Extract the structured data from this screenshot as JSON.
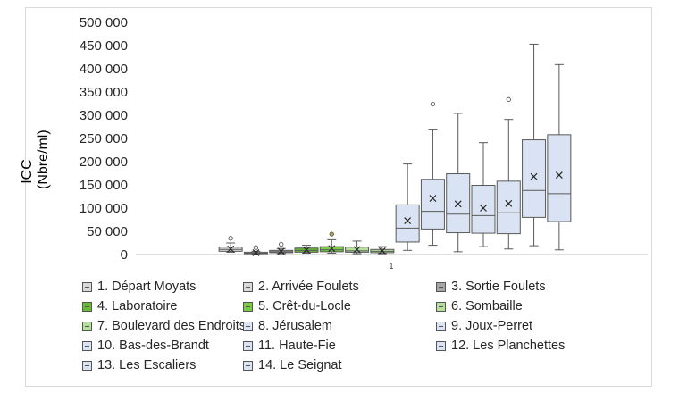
{
  "chart_data": {
    "type": "boxplot",
    "ylabel_line1": "ICC",
    "ylabel_line2": "(Nbre/ml)",
    "x_tick": "1",
    "yticks": [
      "0",
      "50 000",
      "100 000",
      "150 000",
      "200 000",
      "250 000",
      "300 000",
      "350 000",
      "400 000",
      "450 000",
      "500 000"
    ],
    "ylim": [
      0,
      500000
    ],
    "grid": false,
    "legend_position": "bottom",
    "series": [
      {
        "name": "1. Départ Moyats",
        "color": "#d9d9d9",
        "whisker_low": 5000,
        "q1": 7000,
        "median": 11000,
        "q3": 16000,
        "whisker_high": 25000,
        "mean": 12000,
        "outliers": [
          35000
        ]
      },
      {
        "name": "2. Arrivée Foulets",
        "color": "#d9d9d9",
        "whisker_low": 1000,
        "q1": 2000,
        "median": 3000,
        "q3": 5000,
        "whisker_high": 7000,
        "mean": 4000,
        "outliers": [
          15000
        ]
      },
      {
        "name": "3. Sortie Foulets",
        "color": "#a6a6a6",
        "whisker_low": 2000,
        "q1": 4000,
        "median": 6000,
        "q3": 9000,
        "whisker_high": 13000,
        "mean": 7000,
        "outliers": [
          22000
        ]
      },
      {
        "name": "4. Laboratoire",
        "color": "#66bb33",
        "whisker_low": 3000,
        "q1": 5000,
        "median": 9000,
        "q3": 14000,
        "whisker_high": 20000,
        "mean": 10000,
        "outliers": []
      },
      {
        "name": "5. Crêt-du-Locle",
        "color": "#77cc44",
        "whisker_low": 3000,
        "q1": 6000,
        "median": 10000,
        "q3": 17000,
        "whisker_high": 32000,
        "mean": 13000,
        "outliers": [
          44000
        ]
      },
      {
        "name": "6. Sombaille",
        "color": "#b5e09b",
        "whisker_low": 2000,
        "q1": 5000,
        "median": 8000,
        "q3": 16000,
        "whisker_high": 29000,
        "mean": 11000,
        "outliers": []
      },
      {
        "name": "7. Boulevard des Endroits",
        "color": "#b5e09b",
        "whisker_low": 2000,
        "q1": 4000,
        "median": 7000,
        "q3": 11000,
        "whisker_high": 17000,
        "mean": 8000,
        "outliers": []
      },
      {
        "name": "8. Jérusalem",
        "color": "#dae3f3",
        "whisker_low": 9000,
        "q1": 27000,
        "median": 57000,
        "q3": 107000,
        "whisker_high": 195000,
        "mean": 73000,
        "outliers": []
      },
      {
        "name": "9. Joux-Perret",
        "color": "#dae3f3",
        "whisker_low": 20000,
        "q1": 55000,
        "median": 93000,
        "q3": 162000,
        "whisker_high": 270000,
        "mean": 121000,
        "outliers": [
          324000
        ]
      },
      {
        "name": "10. Bas-des-Brandt",
        "color": "#dae3f3",
        "whisker_low": 6000,
        "q1": 47000,
        "median": 87000,
        "q3": 174000,
        "whisker_high": 304000,
        "mean": 109000,
        "outliers": []
      },
      {
        "name": "11. Haute-Fie",
        "color": "#dae3f3",
        "whisker_low": 17000,
        "q1": 46000,
        "median": 84000,
        "q3": 149000,
        "whisker_high": 241000,
        "mean": 100000,
        "outliers": []
      },
      {
        "name": "12. Les Planchettes",
        "color": "#dae3f3",
        "whisker_low": 12000,
        "q1": 45000,
        "median": 90000,
        "q3": 158000,
        "whisker_high": 291000,
        "mean": 110000,
        "outliers": [
          334000
        ]
      },
      {
        "name": "13. Les Escaliers",
        "color": "#dae3f3",
        "whisker_low": 19000,
        "q1": 80000,
        "median": 138000,
        "q3": 247000,
        "whisker_high": 453000,
        "mean": 168000,
        "outliers": []
      },
      {
        "name": "14. Le Seignat",
        "color": "#dae3f3",
        "whisker_low": 10000,
        "q1": 71000,
        "median": 131000,
        "q3": 258000,
        "whisker_high": 409000,
        "mean": 171000,
        "outliers": []
      }
    ]
  }
}
